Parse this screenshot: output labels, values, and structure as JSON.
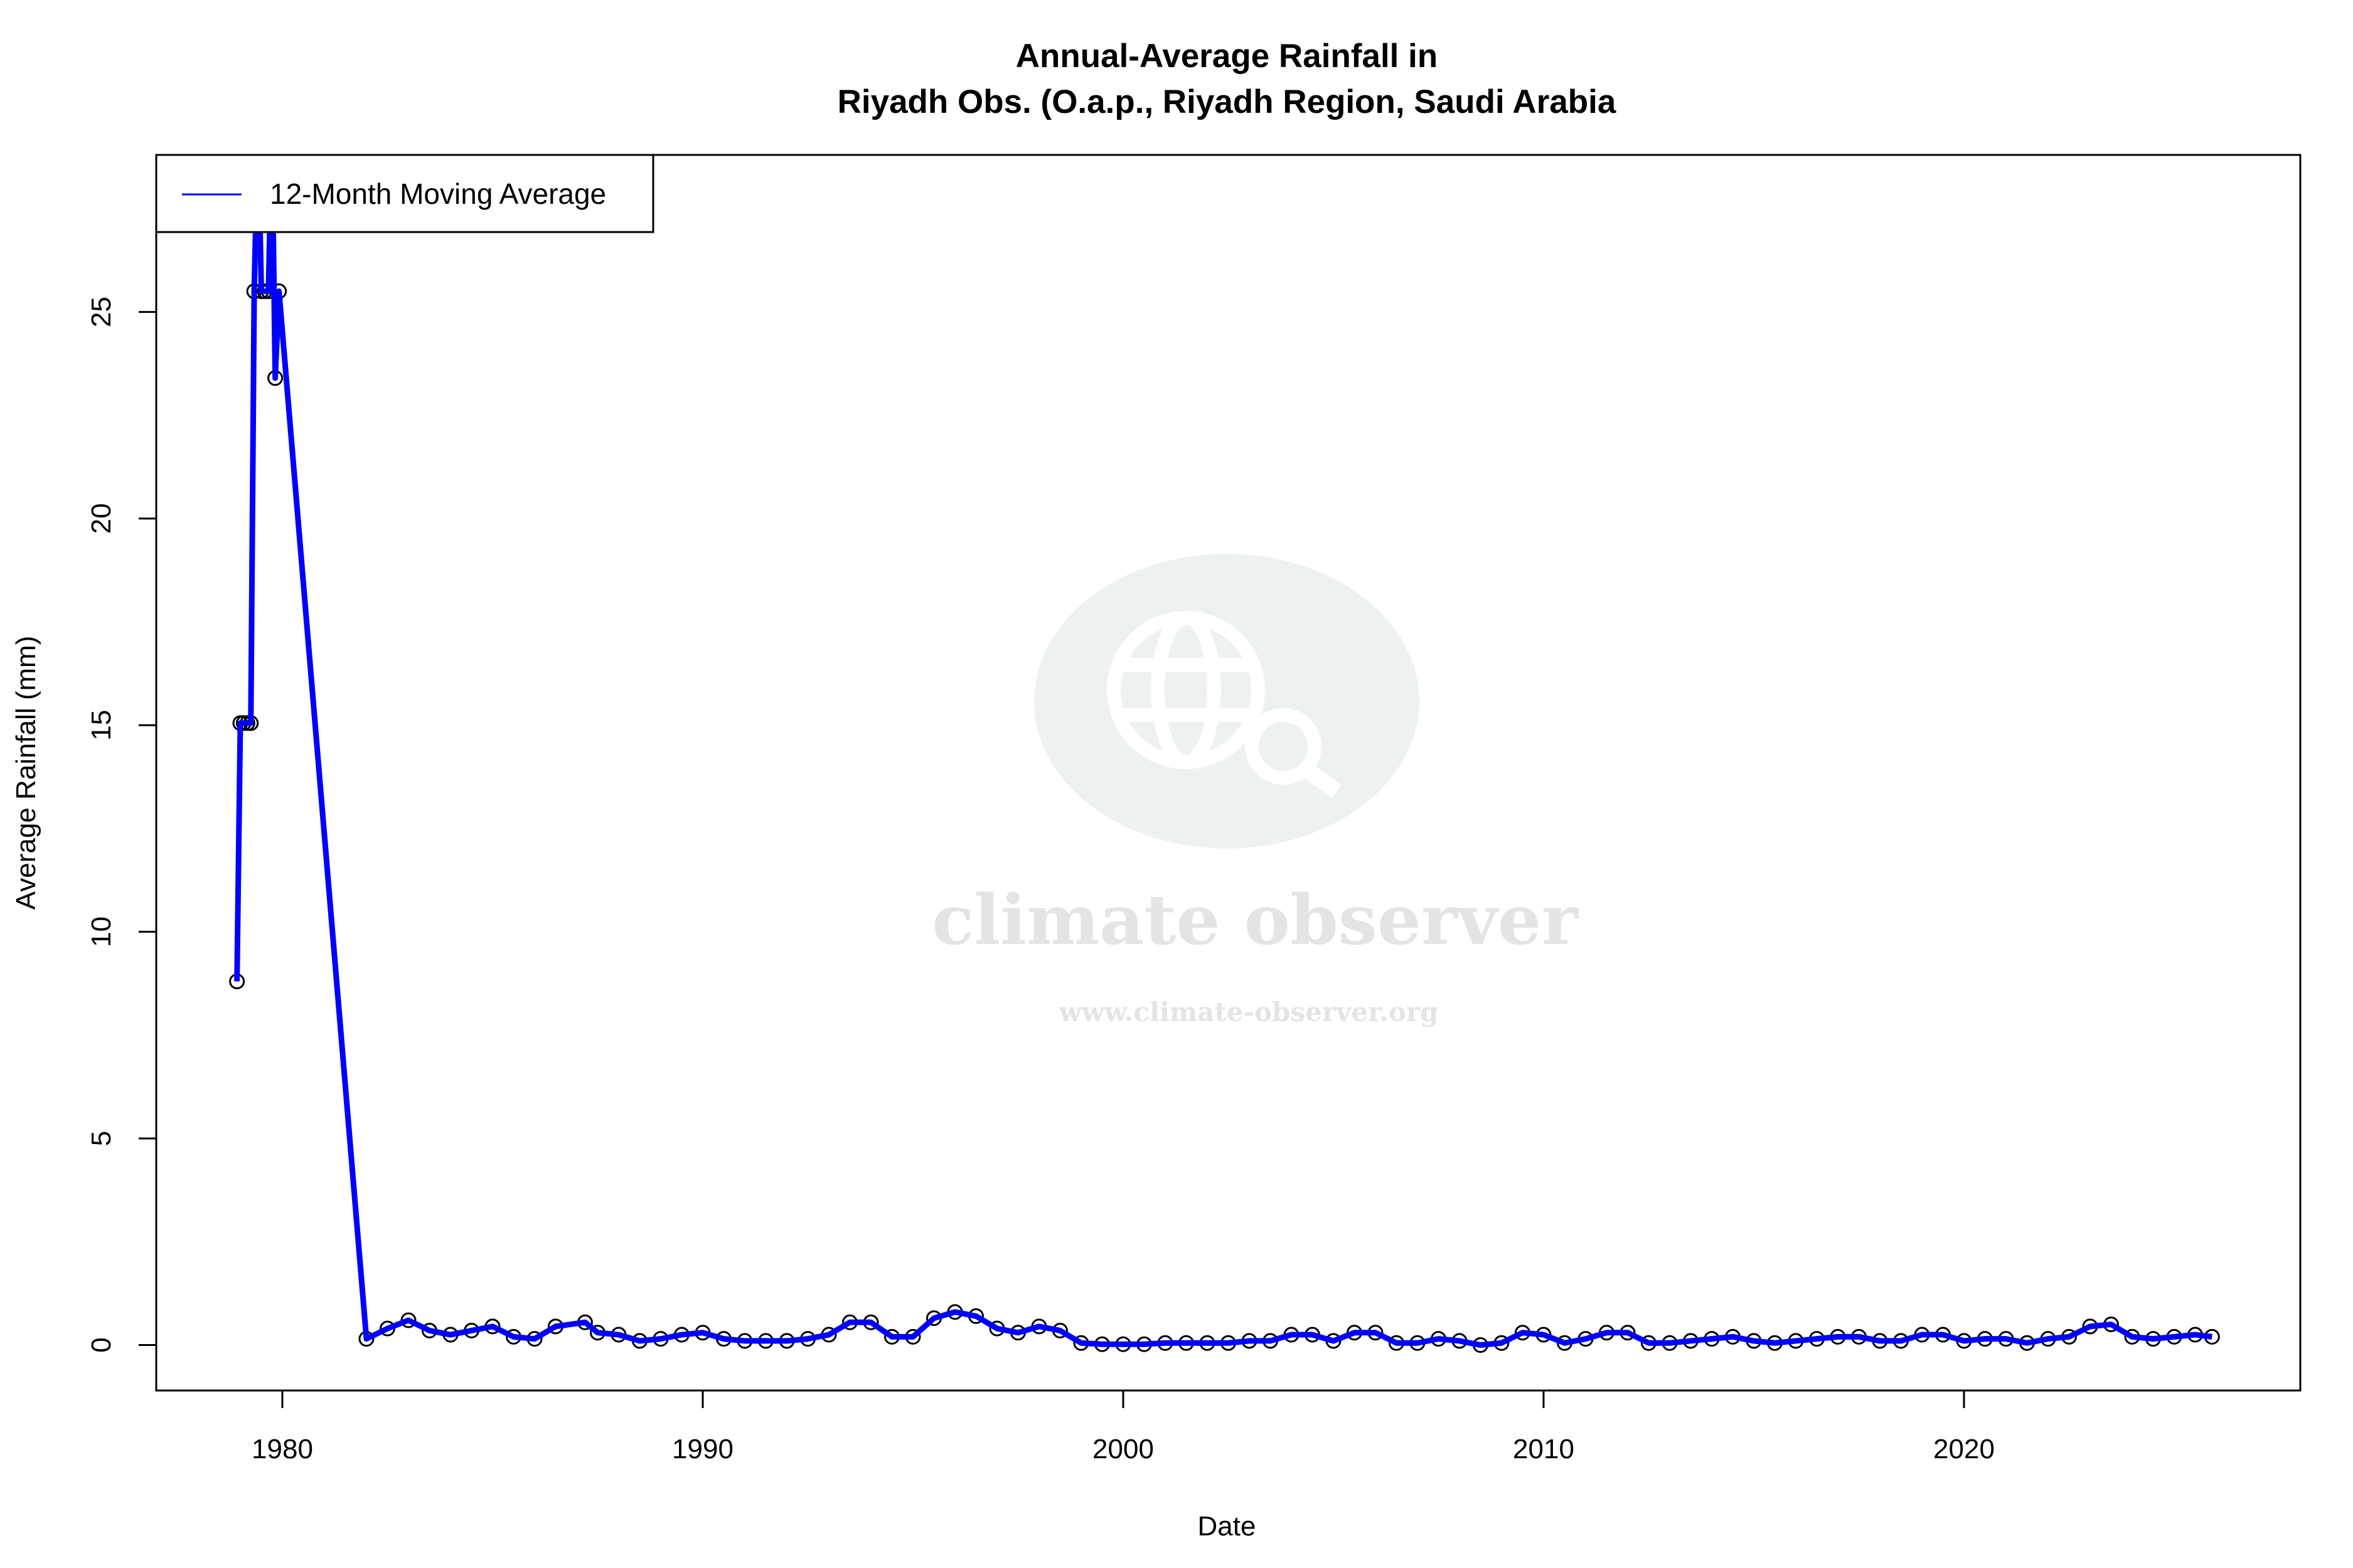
{
  "chart_data": {
    "type": "line",
    "title": "Annual-Average Rainfall in",
    "subtitle": "Riyadh Obs. (O.a.p., Riyadh Region, Saudi Arabia",
    "xlabel": "Date",
    "ylabel": "Average Rainfall (mm)",
    "xlim": [
      1977.0,
      2028.0
    ],
    "ylim": [
      -1.1,
      28.8
    ],
    "x_ticks": [
      1980,
      1990,
      2000,
      2010,
      2020
    ],
    "y_ticks": [
      0,
      5,
      10,
      15,
      20,
      25
    ],
    "grid": false,
    "legend": {
      "placement": "top-left",
      "entries": [
        "12-Month Moving Average"
      ]
    },
    "colors": {
      "line": "#0000ff",
      "points": "#000000"
    },
    "series": [
      {
        "name": "12-Month Moving Average",
        "points": [
          [
            1978.92,
            8.8
          ],
          [
            1979.0,
            15.05
          ],
          [
            1979.08,
            15.05
          ],
          [
            1979.17,
            15.05
          ],
          [
            1979.25,
            15.05
          ],
          [
            1979.33,
            25.5
          ],
          [
            1979.42,
            29.5
          ],
          [
            1979.5,
            25.5
          ],
          [
            1979.58,
            25.5
          ],
          [
            1979.67,
            25.5
          ],
          [
            1979.75,
            29.5
          ],
          [
            1979.83,
            23.4
          ],
          [
            1979.92,
            25.5
          ],
          [
            1982.0,
            0.15
          ],
          [
            1982.5,
            0.4
          ],
          [
            1983.0,
            0.6
          ],
          [
            1983.5,
            0.35
          ],
          [
            1984.0,
            0.25
          ],
          [
            1984.5,
            0.35
          ],
          [
            1985.0,
            0.45
          ],
          [
            1985.5,
            0.2
          ],
          [
            1986.0,
            0.15
          ],
          [
            1986.5,
            0.45
          ],
          [
            1987.2,
            0.55
          ],
          [
            1987.5,
            0.3
          ],
          [
            1988.0,
            0.25
          ],
          [
            1988.5,
            0.1
          ],
          [
            1989.0,
            0.15
          ],
          [
            1989.5,
            0.25
          ],
          [
            1990.0,
            0.3
          ],
          [
            1990.5,
            0.15
          ],
          [
            1991.0,
            0.1
          ],
          [
            1991.5,
            0.1
          ],
          [
            1992.0,
            0.1
          ],
          [
            1992.5,
            0.15
          ],
          [
            1993.0,
            0.25
          ],
          [
            1993.5,
            0.55
          ],
          [
            1994.0,
            0.55
          ],
          [
            1994.5,
            0.2
          ],
          [
            1995.0,
            0.2
          ],
          [
            1995.5,
            0.65
          ],
          [
            1996.0,
            0.8
          ],
          [
            1996.5,
            0.7
          ],
          [
            1997.0,
            0.4
          ],
          [
            1997.5,
            0.3
          ],
          [
            1998.0,
            0.45
          ],
          [
            1998.5,
            0.35
          ],
          [
            1999.0,
            0.05
          ],
          [
            1999.5,
            0.02
          ],
          [
            2000.0,
            0.02
          ],
          [
            2000.5,
            0.02
          ],
          [
            2001.0,
            0.05
          ],
          [
            2001.5,
            0.05
          ],
          [
            2002.0,
            0.05
          ],
          [
            2002.5,
            0.05
          ],
          [
            2003.0,
            0.1
          ],
          [
            2003.5,
            0.1
          ],
          [
            2004.0,
            0.25
          ],
          [
            2004.5,
            0.25
          ],
          [
            2005.0,
            0.1
          ],
          [
            2005.5,
            0.3
          ],
          [
            2006.0,
            0.3
          ],
          [
            2006.5,
            0.05
          ],
          [
            2007.0,
            0.05
          ],
          [
            2007.5,
            0.15
          ],
          [
            2008.0,
            0.1
          ],
          [
            2008.5,
            0.0
          ],
          [
            2009.0,
            0.05
          ],
          [
            2009.5,
            0.3
          ],
          [
            2010.0,
            0.25
          ],
          [
            2010.5,
            0.05
          ],
          [
            2011.0,
            0.15
          ],
          [
            2011.5,
            0.3
          ],
          [
            2012.0,
            0.3
          ],
          [
            2012.5,
            0.05
          ],
          [
            2013.0,
            0.05
          ],
          [
            2013.5,
            0.1
          ],
          [
            2014.0,
            0.15
          ],
          [
            2014.5,
            0.2
          ],
          [
            2015.0,
            0.1
          ],
          [
            2015.5,
            0.05
          ],
          [
            2016.0,
            0.1
          ],
          [
            2016.5,
            0.15
          ],
          [
            2017.0,
            0.2
          ],
          [
            2017.5,
            0.2
          ],
          [
            2018.0,
            0.1
          ],
          [
            2018.5,
            0.1
          ],
          [
            2019.0,
            0.25
          ],
          [
            2019.5,
            0.25
          ],
          [
            2020.0,
            0.1
          ],
          [
            2020.5,
            0.15
          ],
          [
            2021.0,
            0.15
          ],
          [
            2021.5,
            0.05
          ],
          [
            2022.0,
            0.15
          ],
          [
            2022.5,
            0.2
          ],
          [
            2023.0,
            0.45
          ],
          [
            2023.5,
            0.5
          ],
          [
            2024.0,
            0.2
          ],
          [
            2024.5,
            0.15
          ],
          [
            2025.0,
            0.2
          ],
          [
            2025.5,
            0.25
          ],
          [
            2025.9,
            0.2
          ]
        ]
      }
    ]
  },
  "watermark": {
    "logo": "globe-magnifier-icon",
    "name": "climate observer",
    "url": "www.climate-observer.org"
  }
}
